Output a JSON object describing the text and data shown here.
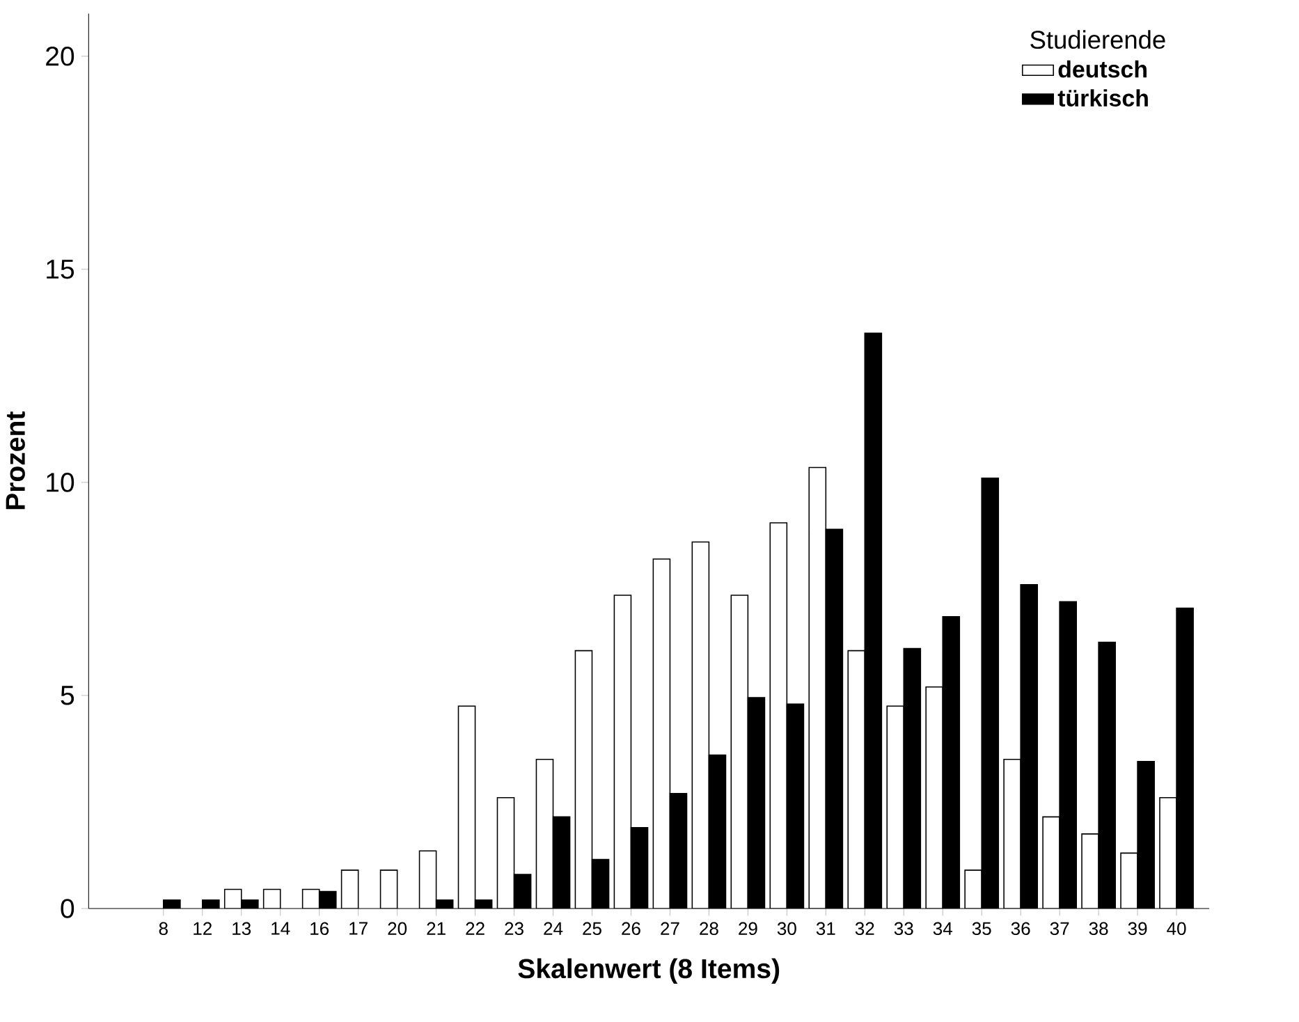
{
  "chart_data": {
    "type": "bar",
    "xlabel": "Skalenwert (8 Items)",
    "ylabel": "Prozent",
    "legend_title": "Studierende",
    "legend": "top right",
    "categories": [
      "8",
      "12",
      "13",
      "14",
      "16",
      "17",
      "20",
      "21",
      "22",
      "23",
      "24",
      "25",
      "26",
      "27",
      "28",
      "29",
      "30",
      "31",
      "32",
      "33",
      "34",
      "35",
      "36",
      "37",
      "38",
      "39",
      "40"
    ],
    "series": [
      {
        "name": "deutsch",
        "color": "#ffffff",
        "values": [
          0,
          0,
          0.45,
          0.45,
          0.45,
          0.9,
          0.9,
          1.35,
          4.75,
          2.6,
          3.5,
          6.05,
          7.35,
          8.2,
          8.6,
          7.35,
          9.05,
          10.35,
          6.05,
          4.75,
          5.2,
          0.9,
          3.5,
          2.15,
          1.75,
          1.3,
          2.6
        ]
      },
      {
        "name": "türkisch",
        "color": "#000000",
        "values": [
          0.2,
          0.2,
          0.2,
          0,
          0.4,
          0,
          0,
          0.2,
          0.2,
          0.8,
          2.15,
          1.15,
          1.9,
          2.7,
          3.6,
          4.95,
          4.8,
          8.9,
          13.5,
          6.1,
          6.85,
          10.1,
          7.6,
          7.2,
          6.25,
          3.45,
          7.05
        ]
      }
    ],
    "ylim": [
      0,
      21
    ],
    "yticks": [
      0,
      5,
      10,
      15,
      20
    ]
  }
}
